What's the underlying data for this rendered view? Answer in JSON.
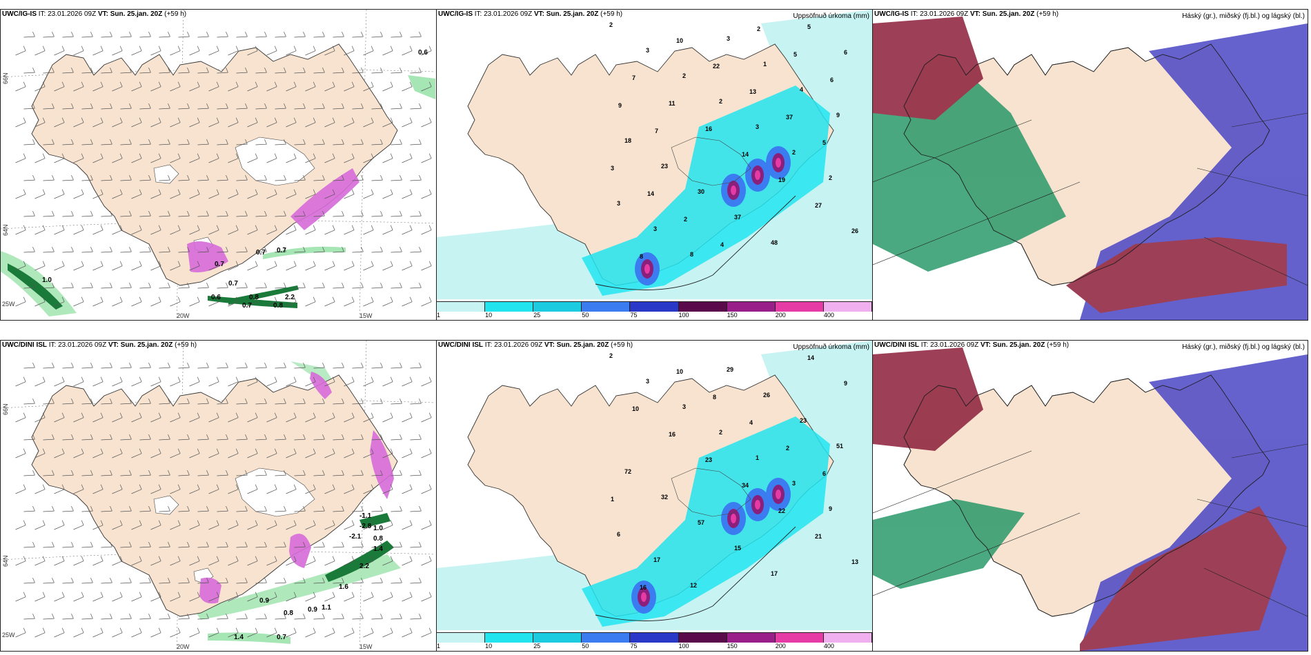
{
  "colors": {
    "land": "#f7e3cf",
    "sea": "#ffffff",
    "precip_light": "#c7f3f3",
    "precip_cyan": "#22e4ee",
    "green_light": "#a6e6b4",
    "green_dark": "#1a7a3a",
    "magenta": "#d66ad8",
    "high_cloud": "#2a9a6a",
    "mid_cloud": "#4a46c4",
    "low_cloud": "#8c1e3a"
  },
  "panels": [
    {
      "id": "ig-wind",
      "model": "UWC/IG-IS",
      "it_label": "IT:",
      "it_value": "23.01.2026 09Z",
      "vt_label": "VT:",
      "vt_value": "Sun. 25.jan. 20Z",
      "lead": "(+59 h)",
      "right_title": "",
      "labels": [
        "0.7",
        "0.7",
        "0.7",
        "1.0",
        "0.6",
        "0.8",
        "0.7",
        "0.8",
        "2.2",
        "0.6",
        "0.7"
      ],
      "coords": [
        "66N",
        "64N",
        "25W",
        "20W",
        "15W"
      ]
    },
    {
      "id": "ig-precip",
      "model": "UWC/IG-IS",
      "it_label": "IT:",
      "it_value": "23.01.2026 09Z",
      "vt_label": "VT:",
      "vt_value": "Sun. 25.jan. 20Z",
      "lead": "(+59 h)",
      "right_title": "Uppsöfnuð úrkoma (mm)",
      "labels": [
        "2",
        "3",
        "2",
        "2",
        "3",
        "2",
        "2",
        "3",
        "3",
        "8",
        "3",
        "1",
        "4",
        "9",
        "18",
        "23",
        "30",
        "37",
        "48",
        "5",
        "6",
        "7",
        "11",
        "16",
        "14",
        "19",
        "27",
        "26",
        "8",
        "10",
        "22",
        "13",
        "37",
        "5",
        "3",
        "14",
        "2",
        "4",
        "2",
        "5",
        "6",
        "9",
        "7"
      ],
      "colorbar": [
        "1",
        "10",
        "25",
        "50",
        "75",
        "100",
        "150",
        "200",
        "400"
      ]
    },
    {
      "id": "ig-cloud",
      "model": "UWC/IG-IS",
      "it_label": "IT:",
      "it_value": "23.01.2026 09Z",
      "vt_label": "VT:",
      "vt_value": "Sun. 25.jan. 20Z",
      "lead": "(+59 h)",
      "right_title": "Háský (gr.), miðský (fj.bl.) og lágský (bl.)"
    },
    {
      "id": "dini-wind",
      "model": "UWC/DINI ISL",
      "it_label": "IT:",
      "it_value": "23.01.2026 09Z",
      "vt_label": "VT:",
      "vt_value": "Sun. 25.jan. 20Z",
      "lead": "(+59 h)",
      "right_title": "",
      "labels": [
        "-1.1",
        "-2.8",
        "-2.1",
        "1.0",
        "0.8",
        "1.4",
        "2.2",
        "1.6",
        "0.9",
        "0.8",
        "0.9",
        "1.1",
        "0.7",
        "1.4"
      ],
      "coords": [
        "66N",
        "64N",
        "25W",
        "20W",
        "15W"
      ]
    },
    {
      "id": "dini-precip",
      "model": "UWC/DINI ISL",
      "it_label": "IT:",
      "it_value": "23.01.2026 09Z",
      "vt_label": "VT:",
      "vt_value": "Sun. 25.jan. 20Z",
      "lead": "(+59 h)",
      "right_title": "Uppsöfnuð úrkoma (mm)",
      "labels": [
        "2",
        "3",
        "3",
        "2",
        "1",
        "3",
        "9",
        "6",
        "17",
        "12",
        "29",
        "26",
        "23",
        "51",
        "72",
        "32",
        "57",
        "15",
        "17",
        "14",
        "9",
        "10",
        "16",
        "23",
        "34",
        "22",
        "21",
        "13",
        "16",
        "10",
        "8",
        "4",
        "2",
        "6",
        "1"
      ],
      "colorbar": [
        "1",
        "10",
        "25",
        "50",
        "75",
        "100",
        "150",
        "200",
        "400"
      ]
    },
    {
      "id": "dini-cloud",
      "model": "UWC/DINI ISL",
      "it_label": "IT:",
      "it_value": "23.01.2026 09Z",
      "vt_label": "VT:",
      "vt_value": "Sun. 25.jan. 20Z",
      "lead": "(+59 h)",
      "right_title": "Háský (gr.), miðský (fj.bl.) og lágský (bl.)"
    }
  ]
}
